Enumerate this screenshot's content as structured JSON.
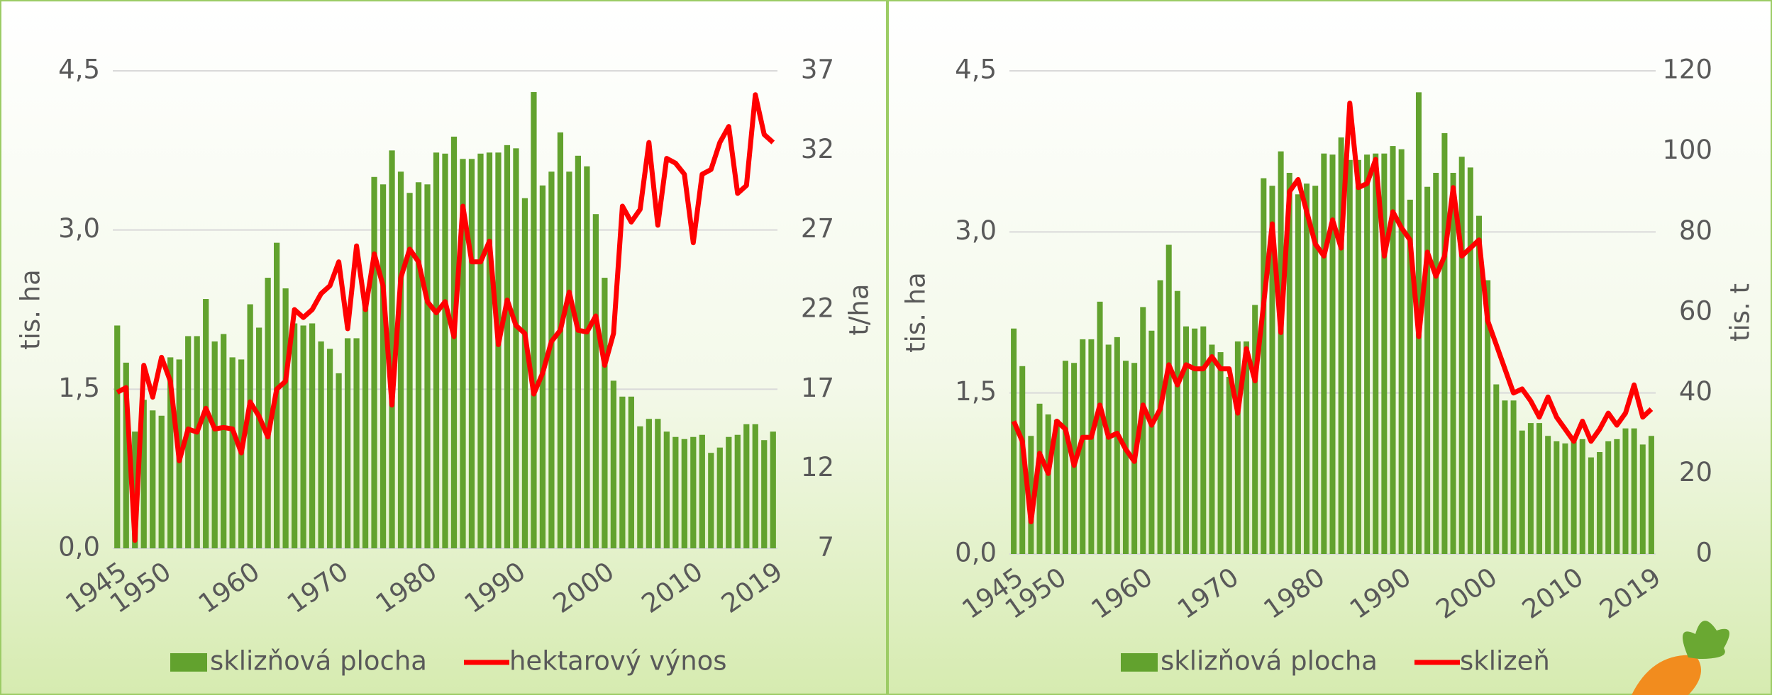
{
  "chart_data": [
    {
      "type": "combo",
      "x": [
        1945,
        1946,
        1947,
        1948,
        1949,
        1950,
        1951,
        1952,
        1953,
        1954,
        1955,
        1956,
        1957,
        1958,
        1959,
        1960,
        1961,
        1962,
        1963,
        1964,
        1965,
        1966,
        1967,
        1968,
        1969,
        1970,
        1971,
        1972,
        1973,
        1974,
        1975,
        1976,
        1977,
        1978,
        1979,
        1980,
        1981,
        1982,
        1983,
        1984,
        1985,
        1986,
        1987,
        1988,
        1989,
        1990,
        1991,
        1992,
        1993,
        1994,
        1995,
        1996,
        1997,
        1998,
        1999,
        2000,
        2001,
        2002,
        2003,
        2004,
        2005,
        2006,
        2007,
        2008,
        2009,
        2010,
        2011,
        2012,
        2013,
        2014,
        2015,
        2016,
        2017,
        2018,
        2019
      ],
      "xticks": [
        1945,
        1950,
        1960,
        1970,
        1980,
        1990,
        2000,
        2010,
        2019
      ],
      "ylabel": "tis. ha",
      "y2label": "t/ha",
      "ylim": [
        0,
        4.5
      ],
      "yticks": [
        {
          "value": 0,
          "label": "0,0"
        },
        {
          "value": 1.5,
          "label": "1,5"
        },
        {
          "value": 3,
          "label": "3,0"
        },
        {
          "value": 4.5,
          "label": "4,5"
        }
      ],
      "y2lim": [
        7,
        37
      ],
      "y2ticks": [
        7,
        12,
        17,
        22,
        27,
        32,
        37
      ],
      "grid": true,
      "series": [
        {
          "name": "sklizňová plocha",
          "type": "bar",
          "color": "#62a22e",
          "values": [
            2.1,
            1.75,
            1.1,
            1.4,
            1.3,
            1.25,
            1.8,
            1.78,
            2.0,
            2.0,
            2.35,
            1.95,
            2.02,
            1.8,
            1.78,
            2.3,
            2.08,
            2.55,
            2.88,
            2.45,
            2.12,
            2.1,
            2.12,
            1.95,
            1.88,
            1.65,
            1.98,
            1.98,
            2.32,
            3.5,
            3.43,
            3.75,
            3.55,
            3.35,
            3.45,
            3.43,
            3.73,
            3.72,
            3.88,
            3.67,
            3.67,
            3.72,
            3.73,
            3.73,
            3.8,
            3.77,
            3.3,
            4.3,
            3.42,
            3.55,
            3.92,
            3.55,
            3.7,
            3.6,
            3.15,
            2.55,
            1.58,
            1.43,
            1.43,
            1.15,
            1.22,
            1.22,
            1.1,
            1.05,
            1.03,
            1.05,
            1.07,
            0.9,
            0.95,
            1.05,
            1.07,
            1.17,
            1.17,
            1.02,
            1.1
          ]
        },
        {
          "name": "hektarový výnos",
          "type": "line",
          "axis": "y2",
          "color": "#ff0000",
          "values": [
            16.8,
            17.1,
            7.5,
            18.5,
            16.5,
            19,
            17.5,
            12.5,
            14.5,
            14.3,
            15.8,
            14.5,
            14.6,
            14.5,
            13,
            16.2,
            15.3,
            14,
            17,
            17.5,
            22,
            21.5,
            22,
            23,
            23.5,
            25,
            20.8,
            26,
            22,
            25.5,
            23.5,
            16,
            24,
            25.8,
            25,
            22.5,
            21.8,
            22.5,
            20.3,
            28.5,
            25,
            25,
            26.3,
            19.8,
            22.6,
            21,
            20.5,
            16.7,
            18,
            20,
            20.7,
            23.1,
            20.7,
            20.6,
            21.6,
            18.5,
            20.5,
            28.5,
            27.5,
            28.3,
            32.5,
            27.3,
            31.5,
            31.2,
            30.5,
            26.2,
            30.5,
            30.8,
            32.5,
            33.5,
            29.3,
            29.8,
            35.5,
            33,
            32.5
          ]
        }
      ]
    },
    {
      "type": "combo",
      "x": [
        1945,
        1946,
        1947,
        1948,
        1949,
        1950,
        1951,
        1952,
        1953,
        1954,
        1955,
        1956,
        1957,
        1958,
        1959,
        1960,
        1961,
        1962,
        1963,
        1964,
        1965,
        1966,
        1967,
        1968,
        1969,
        1970,
        1971,
        1972,
        1973,
        1974,
        1975,
        1976,
        1977,
        1978,
        1979,
        1980,
        1981,
        1982,
        1983,
        1984,
        1985,
        1986,
        1987,
        1988,
        1989,
        1990,
        1991,
        1992,
        1993,
        1994,
        1995,
        1996,
        1997,
        1998,
        1999,
        2000,
        2001,
        2002,
        2003,
        2004,
        2005,
        2006,
        2007,
        2008,
        2009,
        2010,
        2011,
        2012,
        2013,
        2014,
        2015,
        2016,
        2017,
        2018,
        2019
      ],
      "xticks": [
        1945,
        1950,
        1960,
        1970,
        1980,
        1990,
        2000,
        2010,
        2019
      ],
      "ylabel": "tis. ha",
      "y2label": "tis. t",
      "ylim": [
        0,
        4.5
      ],
      "yticks": [
        {
          "value": 0,
          "label": "0,0"
        },
        {
          "value": 1.5,
          "label": "1,5"
        },
        {
          "value": 3,
          "label": "3,0"
        },
        {
          "value": 4.5,
          "label": "4,5"
        }
      ],
      "y2lim": [
        0,
        120
      ],
      "y2ticks": [
        0,
        20,
        40,
        60,
        80,
        100,
        120
      ],
      "grid": true,
      "series": [
        {
          "name": "sklizňová plocha",
          "type": "bar",
          "color": "#62a22e",
          "values": [
            2.1,
            1.75,
            1.1,
            1.4,
            1.3,
            1.25,
            1.8,
            1.78,
            2.0,
            2.0,
            2.35,
            1.95,
            2.02,
            1.8,
            1.78,
            2.3,
            2.08,
            2.55,
            2.88,
            2.45,
            2.12,
            2.1,
            2.12,
            1.95,
            1.88,
            1.65,
            1.98,
            1.98,
            2.32,
            3.5,
            3.43,
            3.75,
            3.55,
            3.35,
            3.45,
            3.43,
            3.73,
            3.72,
            3.88,
            3.67,
            3.67,
            3.72,
            3.73,
            3.73,
            3.8,
            3.77,
            3.3,
            4.3,
            3.42,
            3.55,
            3.92,
            3.55,
            3.7,
            3.6,
            3.15,
            2.55,
            1.58,
            1.43,
            1.43,
            1.15,
            1.22,
            1.22,
            1.1,
            1.05,
            1.03,
            1.05,
            1.07,
            0.9,
            0.95,
            1.05,
            1.07,
            1.17,
            1.17,
            1.02,
            1.1
          ]
        },
        {
          "name": "sklizeň",
          "type": "line",
          "axis": "y2",
          "color": "#ff0000",
          "values": [
            33,
            28,
            8,
            25,
            20,
            33,
            31,
            22,
            29,
            29,
            37,
            29,
            30,
            26,
            23,
            37,
            32,
            36,
            47,
            42,
            47,
            46,
            46,
            49,
            46,
            46,
            35,
            51,
            43,
            62,
            82,
            55,
            90,
            93,
            85,
            77,
            74,
            83,
            76,
            112,
            91,
            92,
            98,
            74,
            85,
            81,
            78,
            54,
            75,
            69,
            74,
            91,
            74,
            76,
            78,
            58,
            52,
            46,
            40,
            41,
            38,
            34,
            39,
            34,
            31,
            28,
            33,
            28,
            31,
            35,
            32,
            35,
            42,
            34,
            36
          ]
        }
      ]
    }
  ]
}
